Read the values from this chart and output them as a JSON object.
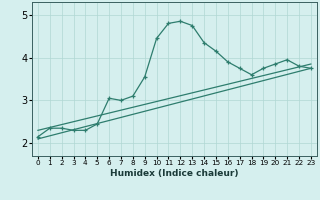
{
  "xlabel": "Humidex (Indice chaleur)",
  "ylabel": "",
  "bg_color": "#d5efee",
  "line_color": "#2e7d6e",
  "grid_color": "#b0d8d4",
  "x_ticks": [
    0,
    1,
    2,
    3,
    4,
    5,
    6,
    7,
    8,
    9,
    10,
    11,
    12,
    13,
    14,
    15,
    16,
    17,
    18,
    19,
    20,
    21,
    22,
    23
  ],
  "y_ticks": [
    2,
    3,
    4,
    5
  ],
  "ylim": [
    1.7,
    5.3
  ],
  "xlim": [
    -0.5,
    23.5
  ],
  "curve_x": [
    0,
    1,
    2,
    3,
    4,
    5,
    6,
    7,
    8,
    9,
    10,
    11,
    12,
    13,
    14,
    15,
    16,
    17,
    18,
    19,
    20,
    21,
    22,
    23
  ],
  "curve_y": [
    2.15,
    2.35,
    2.35,
    2.3,
    2.3,
    2.45,
    3.05,
    3.0,
    3.1,
    3.55,
    4.45,
    4.8,
    4.85,
    4.75,
    4.35,
    4.15,
    3.9,
    3.75,
    3.6,
    3.75,
    3.85,
    3.95,
    3.8,
    3.75
  ],
  "line1_x": [
    0,
    23
  ],
  "line1_y": [
    2.1,
    3.75
  ],
  "line2_x": [
    0,
    23
  ],
  "line2_y": [
    2.3,
    3.85
  ]
}
